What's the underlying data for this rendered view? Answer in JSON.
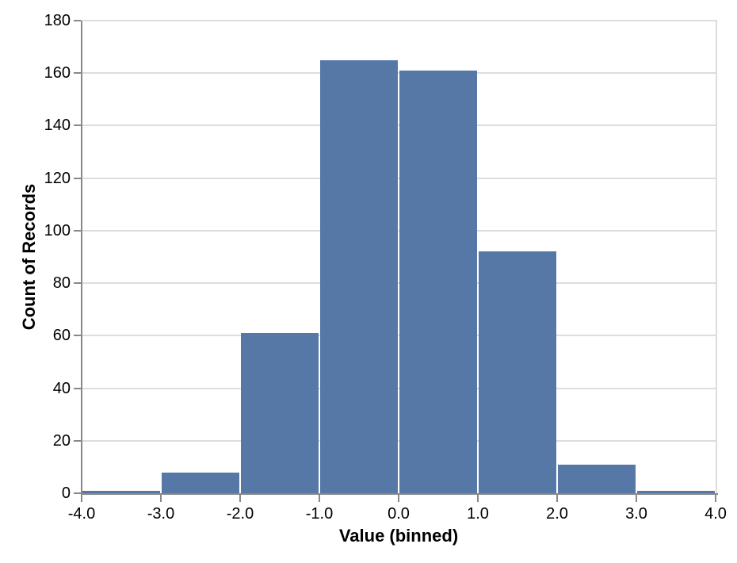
{
  "chart_data": {
    "type": "bar",
    "subtype": "histogram",
    "title": "",
    "xlabel": "Value (binned)",
    "ylabel": "Count of Records",
    "bin_width": 1.0,
    "bins": [
      {
        "x0": -4.0,
        "x1": -3.0,
        "count": 1
      },
      {
        "x0": -3.0,
        "x1": -2.0,
        "count": 8
      },
      {
        "x0": -2.0,
        "x1": -1.0,
        "count": 61
      },
      {
        "x0": -1.0,
        "x1": 0.0,
        "count": 165
      },
      {
        "x0": 0.0,
        "x1": 1.0,
        "count": 161
      },
      {
        "x0": 1.0,
        "x1": 2.0,
        "count": 92
      },
      {
        "x0": 2.0,
        "x1": 3.0,
        "count": 11
      },
      {
        "x0": 3.0,
        "x1": 4.0,
        "count": 1
      }
    ],
    "total_records": 500,
    "xlim": [
      -4.0,
      4.0
    ],
    "ylim": [
      0,
      180
    ],
    "x_tick_labels": [
      "-4.0",
      "-3.0",
      "-2.0",
      "-1.0",
      "0.0",
      "1.0",
      "2.0",
      "3.0",
      "4.0"
    ],
    "x_tick_values": [
      -4,
      -3,
      -2,
      -1,
      0,
      1,
      2,
      3,
      4
    ],
    "y_tick_values": [
      0,
      20,
      40,
      60,
      80,
      100,
      120,
      140,
      160,
      180
    ],
    "grid": "horizontal-only",
    "legend": "none",
    "colors": {
      "bar": "#5678a7",
      "grid": "#dddddd",
      "axis_domain": "#888888",
      "tick": "#888888",
      "label_text": "#000000",
      "background": "#ffffff"
    }
  }
}
